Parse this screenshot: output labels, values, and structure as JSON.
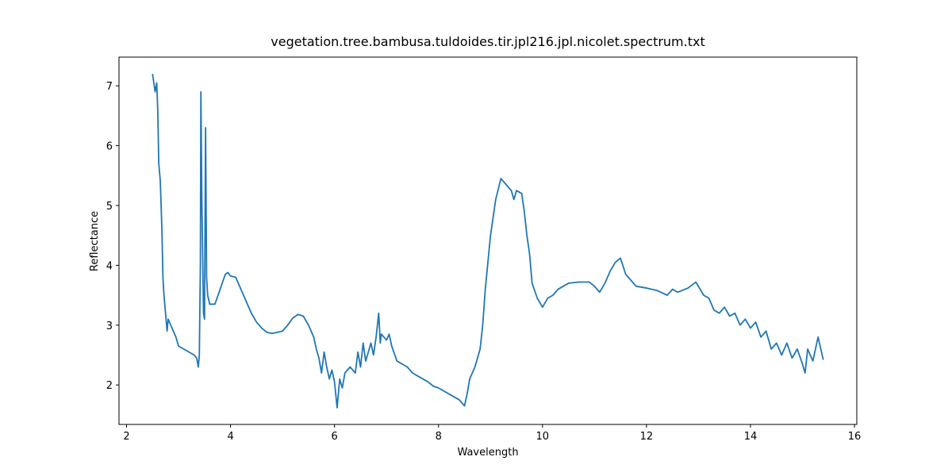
{
  "chart_data": {
    "type": "line",
    "title": "vegetation.tree.bambusa.tuldoides.tir.jpl216.jpl.nicolet.spectrum.txt",
    "x_label": "Wavelength",
    "y_label": "Reflectance",
    "xlim": [
      1.855,
      16.045
    ],
    "ylim": [
      1.34,
      7.48
    ],
    "xticks": [
      2,
      4,
      6,
      8,
      10,
      12,
      14,
      16
    ],
    "yticks": [
      2,
      3,
      4,
      5,
      6,
      7
    ],
    "series": [
      {
        "name": "Reflectance",
        "color": "#1f77b4",
        "x": [
          2.5,
          2.55,
          2.58,
          2.6,
          2.62,
          2.65,
          2.68,
          2.7,
          2.72,
          2.75,
          2.78,
          2.8,
          2.85,
          2.9,
          2.95,
          3.0,
          3.1,
          3.2,
          3.3,
          3.35,
          3.38,
          3.4,
          3.42,
          3.43,
          3.45,
          3.48,
          3.5,
          3.52,
          3.54,
          3.56,
          3.6,
          3.7,
          3.8,
          3.9,
          3.95,
          4.0,
          4.1,
          4.2,
          4.3,
          4.4,
          4.5,
          4.6,
          4.7,
          4.8,
          4.9,
          5.0,
          5.1,
          5.2,
          5.3,
          5.4,
          5.5,
          5.6,
          5.65,
          5.7,
          5.75,
          5.8,
          5.85,
          5.9,
          5.95,
          6.0,
          6.05,
          6.1,
          6.15,
          6.2,
          6.3,
          6.4,
          6.45,
          6.5,
          6.55,
          6.6,
          6.7,
          6.75,
          6.8,
          6.85,
          6.88,
          6.9,
          7.0,
          7.05,
          7.1,
          7.2,
          7.3,
          7.4,
          7.5,
          7.6,
          7.7,
          7.8,
          7.9,
          8.0,
          8.1,
          8.2,
          8.3,
          8.4,
          8.5,
          8.55,
          8.6,
          8.7,
          8.8,
          8.85,
          8.9,
          9.0,
          9.1,
          9.2,
          9.3,
          9.4,
          9.45,
          9.5,
          9.6,
          9.65,
          9.7,
          9.75,
          9.8,
          9.9,
          10.0,
          10.1,
          10.2,
          10.3,
          10.5,
          10.7,
          10.9,
          11.0,
          11.1,
          11.2,
          11.3,
          11.4,
          11.5,
          11.6,
          11.7,
          11.8,
          12.0,
          12.2,
          12.4,
          12.5,
          12.6,
          12.8,
          12.95,
          13.1,
          13.2,
          13.3,
          13.4,
          13.5,
          13.6,
          13.7,
          13.8,
          13.9,
          14.0,
          14.1,
          14.2,
          14.3,
          14.4,
          14.5,
          14.6,
          14.7,
          14.8,
          14.9,
          15.0,
          15.05,
          15.1,
          15.2,
          15.3,
          15.4
        ],
        "values": [
          7.2,
          6.9,
          7.05,
          6.6,
          5.7,
          5.4,
          4.6,
          3.8,
          3.5,
          3.2,
          2.9,
          3.1,
          3.0,
          2.9,
          2.8,
          2.65,
          2.6,
          2.55,
          2.5,
          2.45,
          2.3,
          2.5,
          4.0,
          6.9,
          5.0,
          3.2,
          3.1,
          6.3,
          3.8,
          3.5,
          3.35,
          3.35,
          3.6,
          3.85,
          3.88,
          3.82,
          3.8,
          3.6,
          3.4,
          3.2,
          3.05,
          2.95,
          2.88,
          2.86,
          2.88,
          2.9,
          3.0,
          3.12,
          3.18,
          3.15,
          3.0,
          2.8,
          2.6,
          2.45,
          2.2,
          2.55,
          2.3,
          2.1,
          2.25,
          2.05,
          1.62,
          2.1,
          1.95,
          2.2,
          2.3,
          2.2,
          2.55,
          2.3,
          2.7,
          2.4,
          2.7,
          2.5,
          2.8,
          3.2,
          2.7,
          2.85,
          2.75,
          2.85,
          2.65,
          2.4,
          2.35,
          2.3,
          2.2,
          2.15,
          2.1,
          2.05,
          1.98,
          1.95,
          1.9,
          1.85,
          1.8,
          1.75,
          1.65,
          1.85,
          2.1,
          2.3,
          2.6,
          3.0,
          3.6,
          4.5,
          5.1,
          5.45,
          5.35,
          5.25,
          5.1,
          5.25,
          5.2,
          4.9,
          4.5,
          4.2,
          3.7,
          3.45,
          3.3,
          3.45,
          3.5,
          3.6,
          3.7,
          3.72,
          3.72,
          3.65,
          3.55,
          3.7,
          3.9,
          4.05,
          4.12,
          3.85,
          3.75,
          3.65,
          3.62,
          3.58,
          3.5,
          3.6,
          3.55,
          3.62,
          3.72,
          3.5,
          3.45,
          3.25,
          3.2,
          3.3,
          3.15,
          3.2,
          3.0,
          3.1,
          2.95,
          3.05,
          2.8,
          2.9,
          2.6,
          2.7,
          2.5,
          2.7,
          2.45,
          2.6,
          2.35,
          2.2,
          2.6,
          2.4,
          2.8,
          2.42
        ]
      }
    ]
  }
}
